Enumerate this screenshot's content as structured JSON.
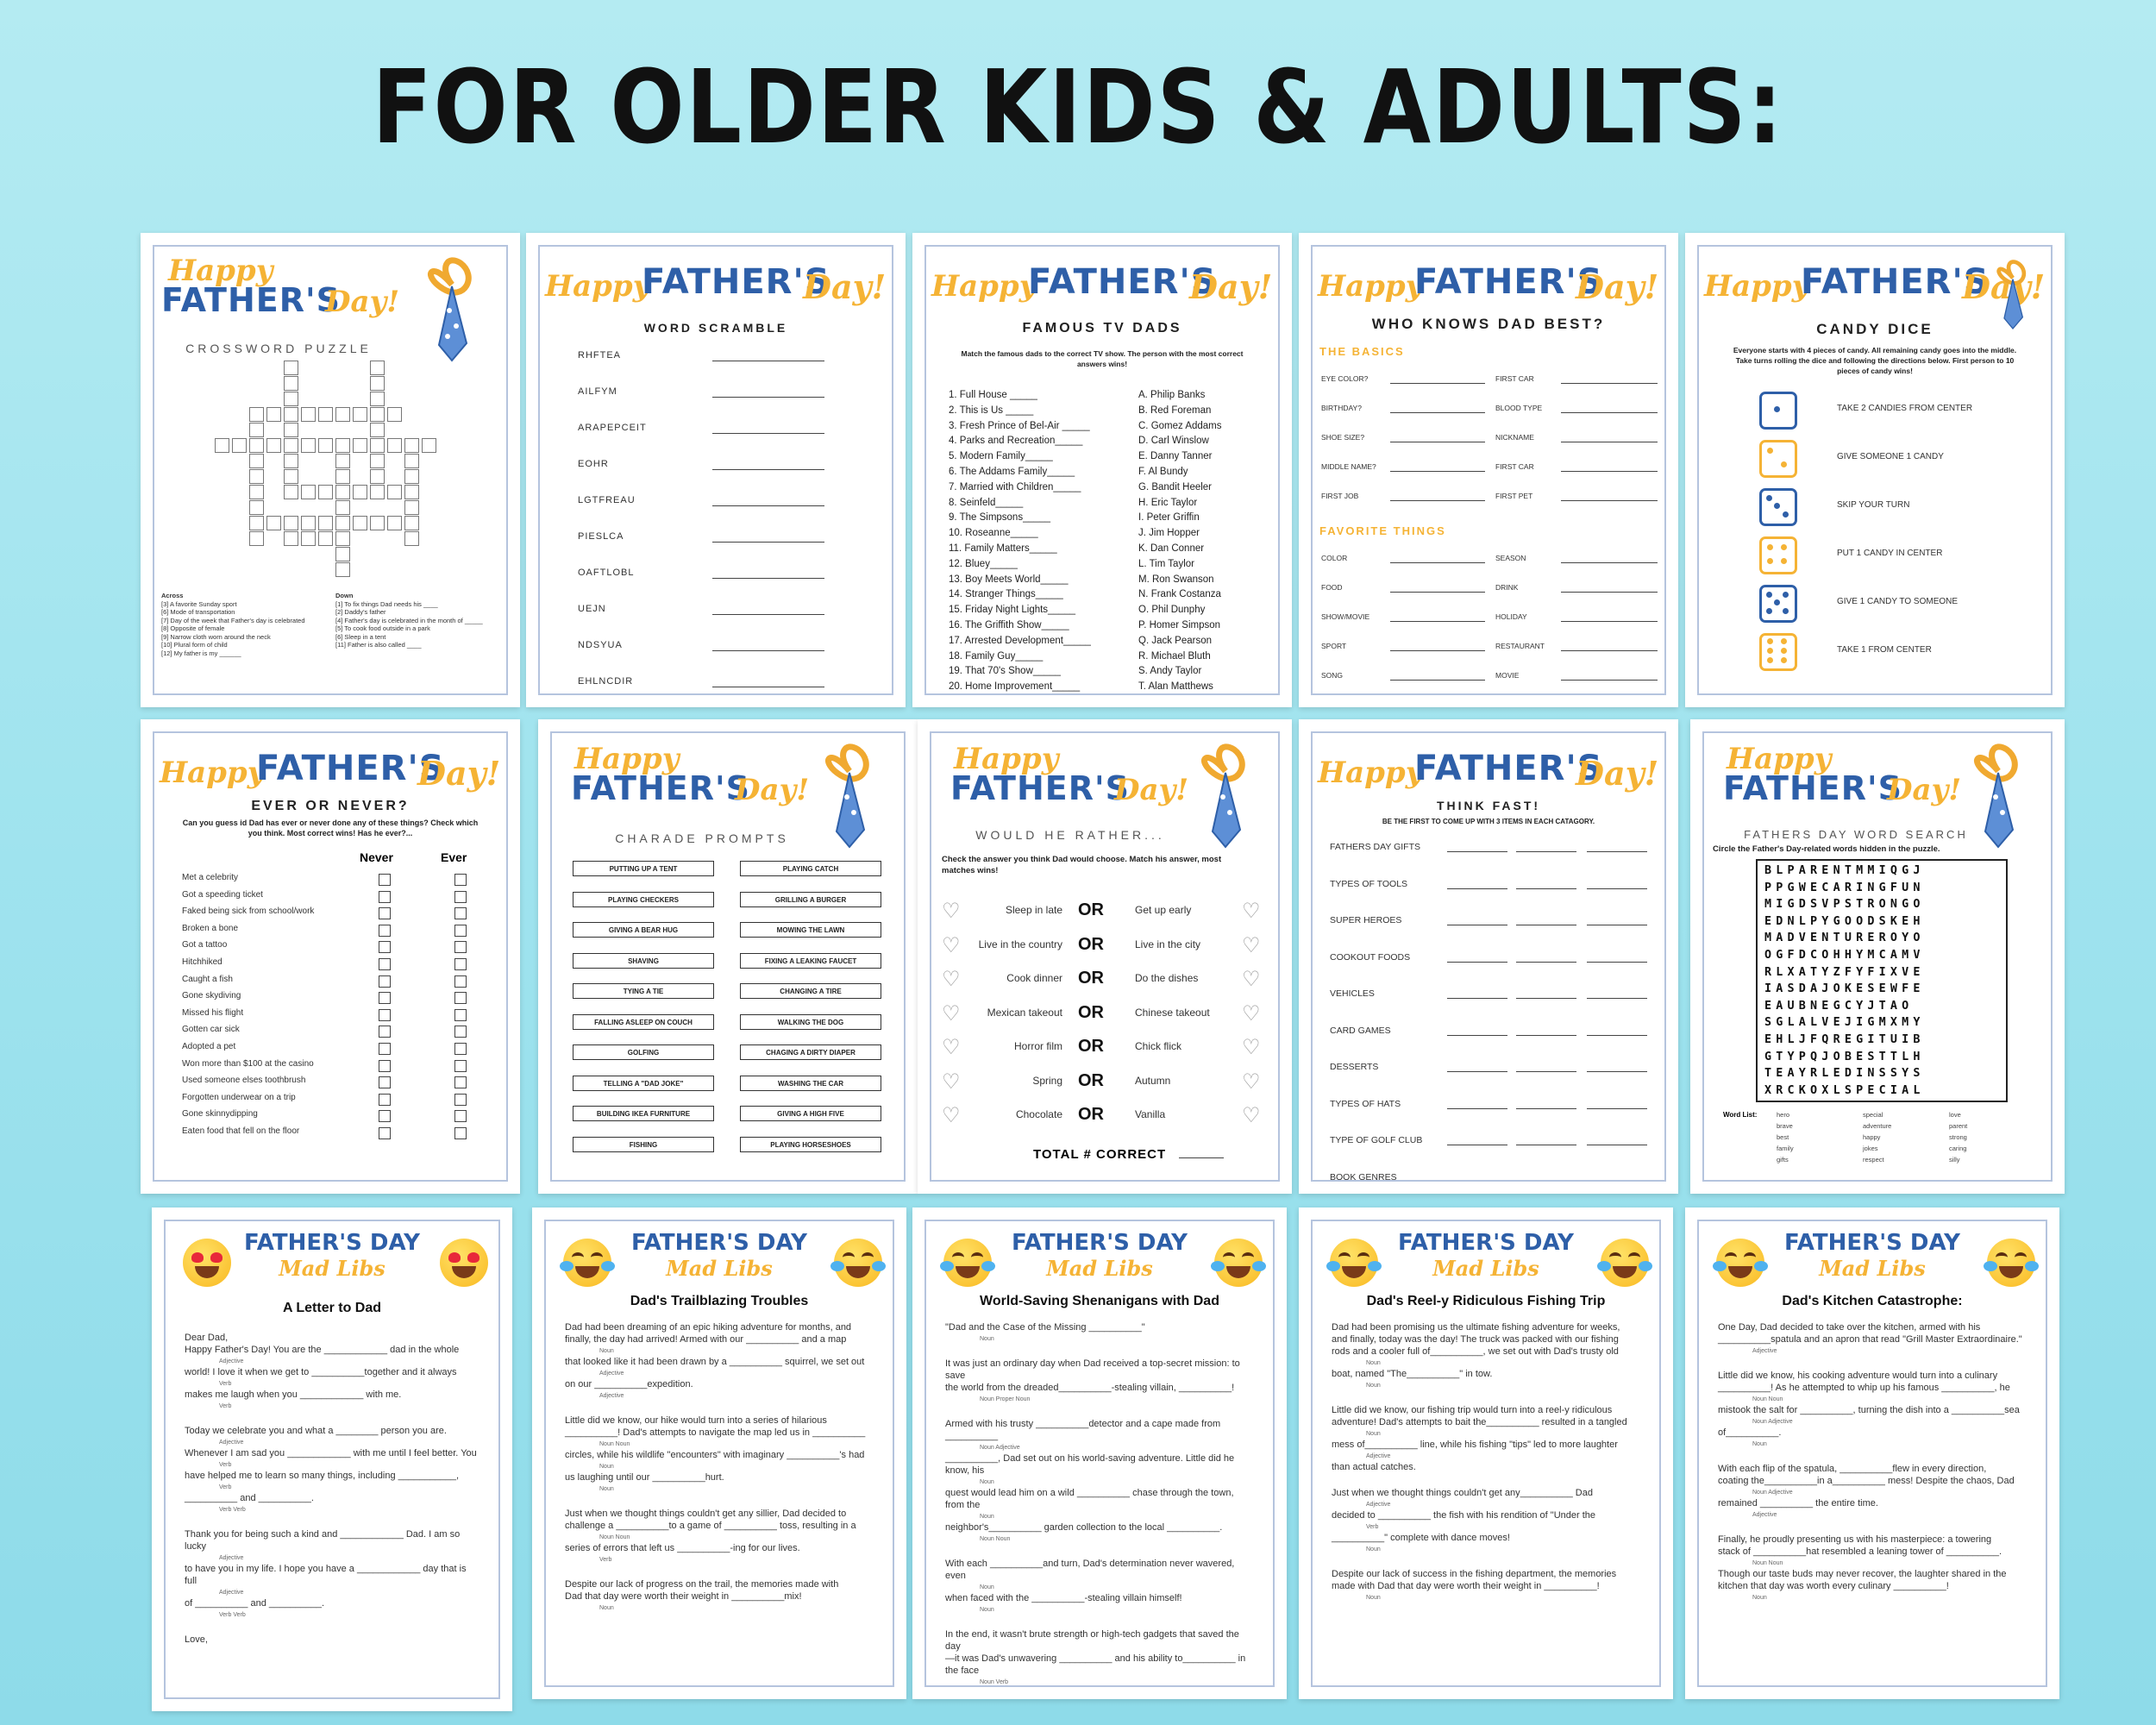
{
  "headline": "FOR OLDER KIDS & ADULTS:",
  "brand": {
    "happy": "Happy",
    "fathers": "FATHER'S",
    "day": "Day!",
    "mad_title": "FATHER'S DAY",
    "mad_sub": "Mad Libs"
  },
  "crossword": {
    "subtitle": "CROSSWORD PUZZLE",
    "across_title": "Across",
    "across": [
      "[3] A favorite Sunday sport",
      "[6] Mode of transportation",
      "[7] Day of the week that Father's day is celebrated",
      "[8] Opposite of female",
      "[9] Narrow cloth worn around the neck",
      "[10] Plural form of child",
      "[12] My father is my ______"
    ],
    "down_title": "Down",
    "down": [
      "[1] To fix things Dad needs his ____",
      "[2] Daddy's father",
      "[4] Father's day is celebrated in the month of _____",
      "[5] To cook food outside in a park",
      "[6] Sleep in a tent",
      "[11] Father is also called ____"
    ]
  },
  "scramble": {
    "subtitle": "WORD SCRAMBLE",
    "words": [
      "RHFTEA",
      "AILFYM",
      "ARAPEPCEIT",
      "EOHR",
      "LGTFREAU",
      "PIESLCA",
      "OAFTLOBL",
      "UEJN",
      "NDSYUA",
      "EHLNCDIR"
    ]
  },
  "tvdads": {
    "subtitle": "FAMOUS TV DADS",
    "intro": "Match the famous dads to the correct TV show. The person with the most correct answers wins!",
    "shows": [
      "1.  Full House _____",
      "2.  This is Us _____",
      "3.  Fresh Prince of Bel-Air _____",
      "4.  Parks and Recreation_____",
      "5.  Modern Family_____",
      "6.  The Addams Family_____",
      "7.  Married with Children_____",
      "8.  Seinfeld_____",
      "9.  The Simpsons_____",
      "10.  Roseanne_____",
      "11.  Family Matters_____",
      "12.  Bluey_____",
      "13.  Boy Meets World_____",
      "14.  Stranger Things_____",
      "15.  Friday Night Lights_____",
      "16.  The Griffith Show_____",
      "17.  Arrested Development_____",
      "18.  Family Guy_____",
      "19.  That 70's Show_____",
      "20.  Home Improvement_____"
    ],
    "dads": [
      "A.  Philip Banks",
      "B.  Red Foreman",
      "C.  Gomez Addams",
      "D.  Carl Winslow",
      "E.  Danny Tanner",
      "F.  Al Bundy",
      "G.  Bandit Heeler",
      "H.  Eric Taylor",
      "I.  Peter Griffin",
      "J.  Jim Hopper",
      "K.  Dan Conner",
      "L.  Tim Taylor",
      "M.  Ron Swanson",
      "N.  Frank Costanza",
      "O.  Phil Dunphy",
      "P.  Homer Simpson",
      "Q.  Jack Pearson",
      "R.  Michael Bluth",
      "S.  Andy Taylor",
      "T.  Alan Matthews"
    ]
  },
  "knows": {
    "subtitle": "WHO KNOWS DAD BEST?",
    "basics_title": "THE BASICS",
    "basics_left": [
      "EYE COLOR?",
      "BIRTHDAY?",
      "SHOE SIZE?",
      "MIDDLE NAME?",
      "FIRST JOB"
    ],
    "basics_right": [
      "FIRST CAR",
      "BLOOD TYPE",
      "NICKNAME",
      "FIRST CAR",
      "FIRST PET"
    ],
    "fav_title": "FAVORITE THINGS",
    "fav_left": [
      "COLOR",
      "FOOD",
      "SHOW/MOVIE",
      "SPORT",
      "SONG"
    ],
    "fav_right": [
      "SEASON",
      "DRINK",
      "HOLIDAY",
      "RESTAURANT",
      "MOVIE"
    ]
  },
  "candy": {
    "subtitle": "CANDY DICE",
    "intro": "Everyone starts with 4 pieces of candy. All remaining candy goes into the middle. Take turns rolling the dice and following the directions below. First person to 10 pieces of candy wins!",
    "rules": [
      "TAKE 2 CANDIES FROM CENTER",
      "GIVE SOMEONE 1 CANDY",
      "SKIP YOUR TURN",
      "PUT 1 CANDY IN CENTER",
      "GIVE 1 CANDY TO SOMEONE",
      "TAKE 1 FROM CENTER"
    ],
    "colors": {
      "blue": "#2e5fa8",
      "yellow": "#f5b335"
    }
  },
  "evernever": {
    "subtitle": "EVER OR NEVER?",
    "intro": "Can you guess id Dad has ever or never done any of these things? Check which you think. Most correct wins! Has he ever?...",
    "col_never": "Never",
    "col_ever": "Ever",
    "items": [
      "Met a celebrity",
      "Got a speeding ticket",
      "Faked being sick from school/work",
      "Broken a bone",
      "Got a tattoo",
      "Hitchhiked",
      "Caught a fish",
      "Gone skydiving",
      "Missed his flight",
      "Gotten car sick",
      "Adopted a pet",
      "Won more than $100 at the casino",
      "Used someone elses toothbrush",
      "Forgotten underwear on a trip",
      "Gone skinnydipping",
      "Eaten food that fell on the floor"
    ]
  },
  "charade": {
    "subtitle": "CHARADE PROMPTS",
    "left": [
      "PUTTING UP A TENT",
      "PLAYING CHECKERS",
      "GIVING A BEAR HUG",
      "SHAVING",
      "TYING A TIE",
      "FALLING ASLEEP ON COUCH",
      "GOLFING",
      "TELLING A \"DAD JOKE\"",
      "BUILDING IKEA FURNITURE",
      "FISHING"
    ],
    "right": [
      "PLAYING CATCH",
      "GRILLING A BURGER",
      "MOWING THE LAWN",
      "FIXING A LEAKING FAUCET",
      "CHANGING A TIRE",
      "WALKING THE DOG",
      "CHAGING A DIRTY DIAPER",
      "WASHING THE CAR",
      "GIVING A HIGH FIVE",
      "PLAYING HORSESHOES"
    ]
  },
  "rather": {
    "subtitle": "WOULD HE RATHER...",
    "intro": "Check the answer you think Dad would choose.  Match his answer, most matches wins!",
    "or": "OR",
    "left": [
      "Sleep in late",
      "Live in the country",
      "Cook dinner",
      "Mexican takeout",
      "Horror film",
      "Spring",
      "Chocolate"
    ],
    "right": [
      "Get up early",
      "Live in the city",
      "Do the dishes",
      "Chinese takeout",
      "Chick flick",
      "Autumn",
      "Vanilla"
    ],
    "total": "TOTAL # CORRECT"
  },
  "thinkfast": {
    "subtitle": "THINK FAST!",
    "intro": "BE THE FIRST TO COME UP WITH 3 ITEMS IN EACH CATAGORY.",
    "cats": [
      "FATHERS DAY GIFTS",
      "TYPES OF TOOLS",
      "SUPER HEROES",
      "COOKOUT FOODS",
      "VEHICLES",
      "CARD GAMES",
      "DESSERTS",
      "TYPES OF HATS",
      "TYPE OF GOLF CLUB",
      "BOOK GENRES"
    ]
  },
  "wordsearch": {
    "subtitle": "FATHERS DAY WORD SEARCH",
    "intro": "Circle the Father's Day-related words hidden in the puzzle.",
    "grid": [
      "BLPARENTMMIQGJ",
      "PPGWECARINGFUN",
      "MIGDSVPSTRONGO",
      "EDNLPYGOODSKEH",
      "MADVENTUREROYO",
      "OGFDCOHHYMCAMV",
      "RLXATYZFYFIXVE",
      "IASDAJOKESEWFE",
      "EAUBNEGCYJTAO",
      "SGLALVEJIGMXMY",
      "EHLJFQREGITUIB",
      "GTYPQJOBESTTLH",
      "TEAYRLEDINSSYS",
      "XRCKOXLSPECIAL"
    ],
    "list_title": "Word List:",
    "words": [
      "hero",
      "brave",
      "best",
      "family",
      "gifts",
      "special",
      "adventure",
      "happy",
      "jokes",
      "respect",
      "love",
      "parent",
      "strong",
      "caring",
      "silly"
    ]
  },
  "madlibs": [
    {
      "heading": "A Letter to Dad",
      "body": [
        "Dear Dad,",
        "Happy Father's Day! You are the ____________ dad in the whole",
        "Adjective",
        "world! I love it when we get to __________together and it always",
        "Verb",
        "makes me laugh when you ____________ with me.",
        "Verb",
        "",
        "Today we celebrate you and what a ________ person you are.",
        "Adjective",
        "Whenever I am sad you ____________ with me until I feel better. You",
        "Verb",
        "have helped me to learn so many things, including ___________,",
        "Verb",
        "__________ and __________.",
        "Verb    Verb",
        "",
        "Thank you for being such a kind and ____________ Dad. I am so lucky",
        "Adjective",
        "to have you in my life. I hope you have a ____________ day that is full",
        "Adjective",
        "of __________ and __________.",
        "Verb    Verb",
        "",
        "Love,"
      ]
    },
    {
      "heading": "Dad's Trailblazing Troubles",
      "body": [
        "Dad had been dreaming of an epic hiking adventure for months, and",
        "finally, the day had arrived! Armed with our __________ and a map",
        "Noun",
        "that looked like it had been drawn by a __________ squirrel, we set out",
        "Adjective",
        "on our __________expedition.",
        "Adjective",
        "",
        "Little did we know, our hike would turn into a series of hilarious",
        "__________! Dad's attempts to navigate the map led us in __________",
        "Noun    Noun",
        "circles, while his wildlife \"encounters\" with imaginary __________'s had",
        "Noun",
        "us laughing until our __________hurt.",
        "Noun",
        "",
        "Just when we thought things couldn't get any sillier, Dad decided to",
        "challenge a __________to a game of __________ toss, resulting in a",
        "Noun    Noun",
        "series of errors that left us __________-ing for our lives.",
        "Verb",
        "",
        "Despite our lack of progress on the trail, the memories made with",
        "Dad that day were worth their weight in __________mix!",
        "Noun"
      ]
    },
    {
      "heading": "World-Saving Shenanigans with Dad",
      "body": [
        "\"Dad and the Case of the Missing __________\"",
        "Noun",
        "",
        "It was just an ordinary day when Dad received a top-secret mission: to save",
        "the world from the dreaded__________-stealing villain, __________!",
        "Noun    Proper Noun",
        "",
        "Armed with his trusty __________detector and a cape made from __________",
        "Noun    Adjective",
        "__________, Dad set out on his world-saving adventure. Little did he know, his",
        "Noun",
        "quest would lead him on a wild __________ chase through the town, from the",
        "Noun",
        "neighbor's__________ garden collection to the local __________.",
        "Noun    Noun",
        "",
        "With each __________and turn, Dad's determination never wavered, even",
        "Noun",
        "when faced with the __________-stealing villain himself!",
        "Noun",
        "",
        "In the end, it wasn't brute strength or high-tech gadgets that saved the day",
        "—it was Dad's unwavering __________ and his ability to__________ in the face",
        "Noun    Verb",
        "of __________that proved to be the ultimate weapon!",
        "Noun"
      ]
    },
    {
      "heading": "Dad's Reel-y Ridiculous Fishing Trip",
      "body": [
        "Dad had been promising us the ultimate fishing adventure for weeks,",
        "and finally, today was the day! The truck was packed with our fishing",
        "rods and a cooler full of__________, we set out with Dad's trusty old",
        "Noun",
        "boat, named \"The__________\" in tow.",
        "Noun",
        "",
        "Little did we know, our fishing trip would turn into a reel-y ridiculous",
        "adventure! Dad's attempts to bait the__________ resulted in a tangled",
        "Noun",
        "mess of__________ line, while his fishing \"tips\" led to more laughter",
        "Adjective",
        "than actual catches.",
        "",
        "Just when we thought things couldn't get any__________ Dad",
        "Adjective",
        "decided to __________ the fish with his rendition of \"Under the",
        "Verb",
        "__________\" complete with dance moves!",
        "Noun",
        "",
        "Despite our lack of success in the fishing department, the memories",
        "made with Dad that day were worth their weight in __________!",
        "Noun"
      ]
    },
    {
      "heading": "Dad's Kitchen Catastrophe:",
      "body": [
        "One Day, Dad decided to take over the kitchen, armed with his",
        "__________spatula and an apron that read \"Grill Master Extraordinaire.\"",
        "Adjective",
        "",
        "Little did we know, his cooking adventure would turn into a culinary",
        "__________! As he attempted to whip up his famous __________, he",
        "Noun    Noun",
        "mistook the salt for __________, turning the dish into a __________sea",
        "Noun    Adjective",
        "of__________.",
        "Noun",
        "",
        "With each flip of the spatula, __________flew in every direction,",
        "coating the__________in a__________ mess! Despite the chaos, Dad",
        "Noun    Adjective",
        "remained __________ the entire time.",
        "Adjective",
        "",
        "Finally, he proudly presenting us with his masterpiece: a towering",
        "stack of __________hat resembled a leaning tower of __________.",
        "Noun    Noun",
        "Though our taste buds may never recover, the laughter shared in the",
        "kitchen that day was worth every culinary __________!",
        "Noun"
      ]
    }
  ]
}
